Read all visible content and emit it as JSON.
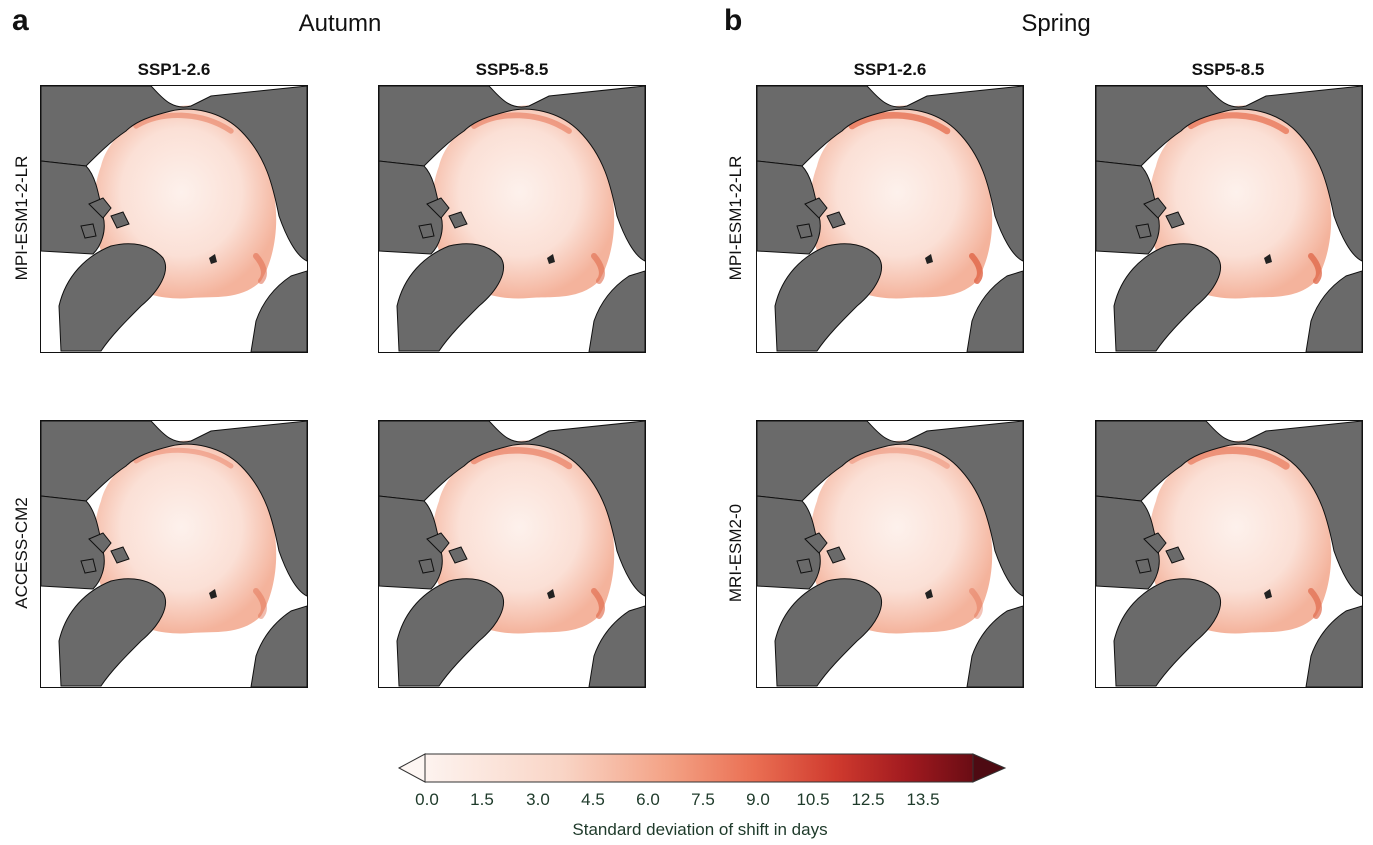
{
  "figure": {
    "panel_a": {
      "letter": "a",
      "title": "Autumn"
    },
    "panel_b": {
      "letter": "b",
      "title": "Spring"
    },
    "scenarios": [
      "SSP1-2.6",
      "SSP5-8.5"
    ],
    "rows_a": [
      "MPI-ESM1-2-LR",
      "ACCESS-CM2"
    ],
    "rows_b": [
      "MPI-ESM1-2-LR",
      "MRI-ESM2-0"
    ]
  },
  "colors": {
    "land": "#6a6a6a",
    "ocean_no_ice": "#ffffff",
    "cmap_low": "#fdf3ef",
    "cmap_mid": "#ef8a6b",
    "cmap_high": "#5f0a12"
  },
  "colorbar": {
    "ticks": [
      "0.0",
      "1.5",
      "3.0",
      "4.5",
      "6.0",
      "7.5",
      "9.0",
      "10.5",
      "12.5",
      "13.5"
    ],
    "label": "Standard deviation of shift in days"
  }
}
